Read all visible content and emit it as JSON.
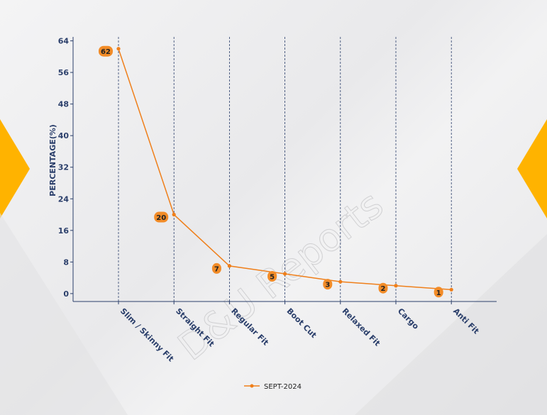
{
  "watermark": "D&U Reports",
  "colors": {
    "accent": "#f28c28",
    "line": "#ef7f1a",
    "axis_text": "#2b3f6b",
    "gridline": "#2b3f6b",
    "side_triangle": "#ffb300"
  },
  "chart_data": {
    "type": "line",
    "categories": [
      "Slim / Skinny Fit",
      "Straight Fit",
      "Regular Fit",
      "Boot Cut",
      "Relaxed Fit",
      "Cargo",
      "Anti Fit"
    ],
    "series": [
      {
        "name": "SEPT-2024",
        "values": [
          62,
          20,
          7,
          5,
          3,
          2,
          1
        ]
      }
    ],
    "title": "",
    "xlabel": "",
    "ylabel": "PERCENTAGE(%)",
    "ylim": [
      -2,
      65
    ],
    "yticks": [
      0,
      8,
      16,
      24,
      32,
      40,
      48,
      56,
      64
    ],
    "grid": "vertical dashed",
    "legend": "bottom-center"
  }
}
